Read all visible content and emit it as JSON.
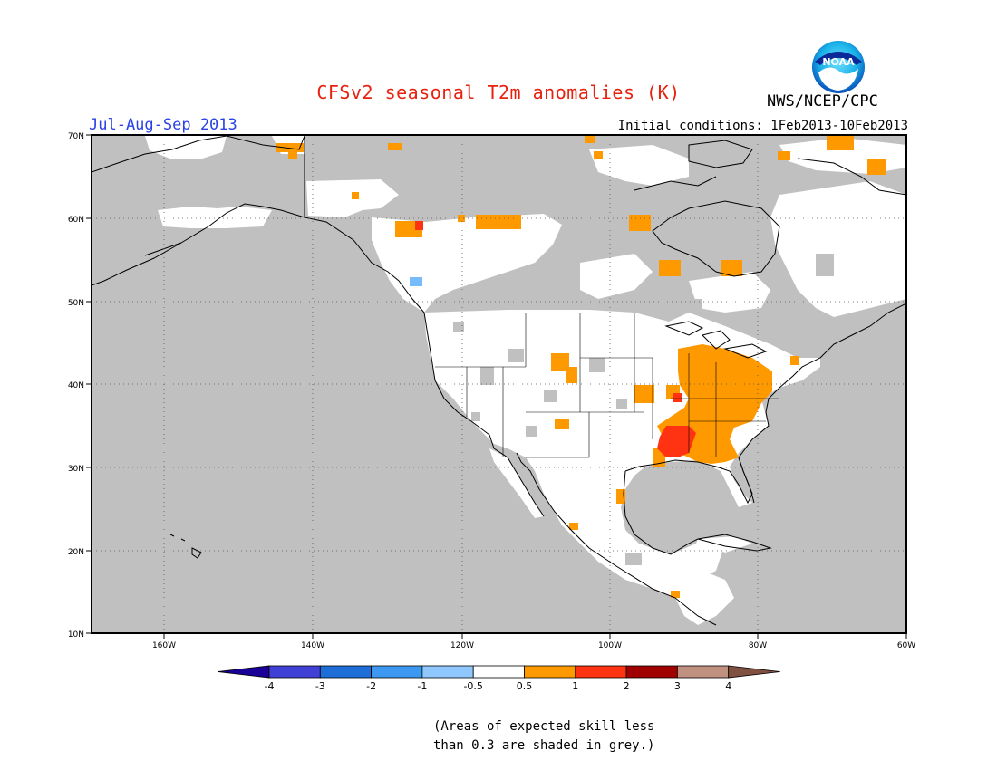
{
  "title": "CFSv2 seasonal T2m anomalies (K)",
  "agency": "NWS/NCEP/CPC",
  "logo_text": "NOAA",
  "season": "Jul-Aug-Sep 2013",
  "initial_conditions": "Initial conditions: 1Feb2013-10Feb2013",
  "note_line1": "(Areas of expected skill less",
  "note_line2": "than 0.3 are shaded in grey.)",
  "map": {
    "lon_range": [
      -172,
      -60
    ],
    "lat_range": [
      10,
      70
    ],
    "lon_labels": [
      "160W",
      "140W",
      "120W",
      "100W",
      "80W",
      "60W"
    ],
    "lat_labels": [
      "70N",
      "60N",
      "50N",
      "40N",
      "30N",
      "20N",
      "10N"
    ],
    "gridlines": "dotted",
    "colors": {
      "grey_low_skill": "#c0c0c0",
      "neutral": "#ffffff",
      "warm_0.5_1": "#ff9900",
      "warm_1_2": "#ff3311",
      "cool_-1_-0.5": "#77bbff",
      "coastline": "#000000"
    }
  },
  "colorbar": {
    "labels": [
      "-4",
      "-3",
      "-2",
      "-1",
      "-0.5",
      "0.5",
      "1",
      "2",
      "3",
      "4"
    ],
    "colors": [
      "#1a0096",
      "#4040d6",
      "#1e6ed8",
      "#3c98f0",
      "#8ec8ff",
      "#ffffff",
      "#ff9900",
      "#ff3311",
      "#a00000",
      "#c09080",
      "#805040"
    ]
  }
}
